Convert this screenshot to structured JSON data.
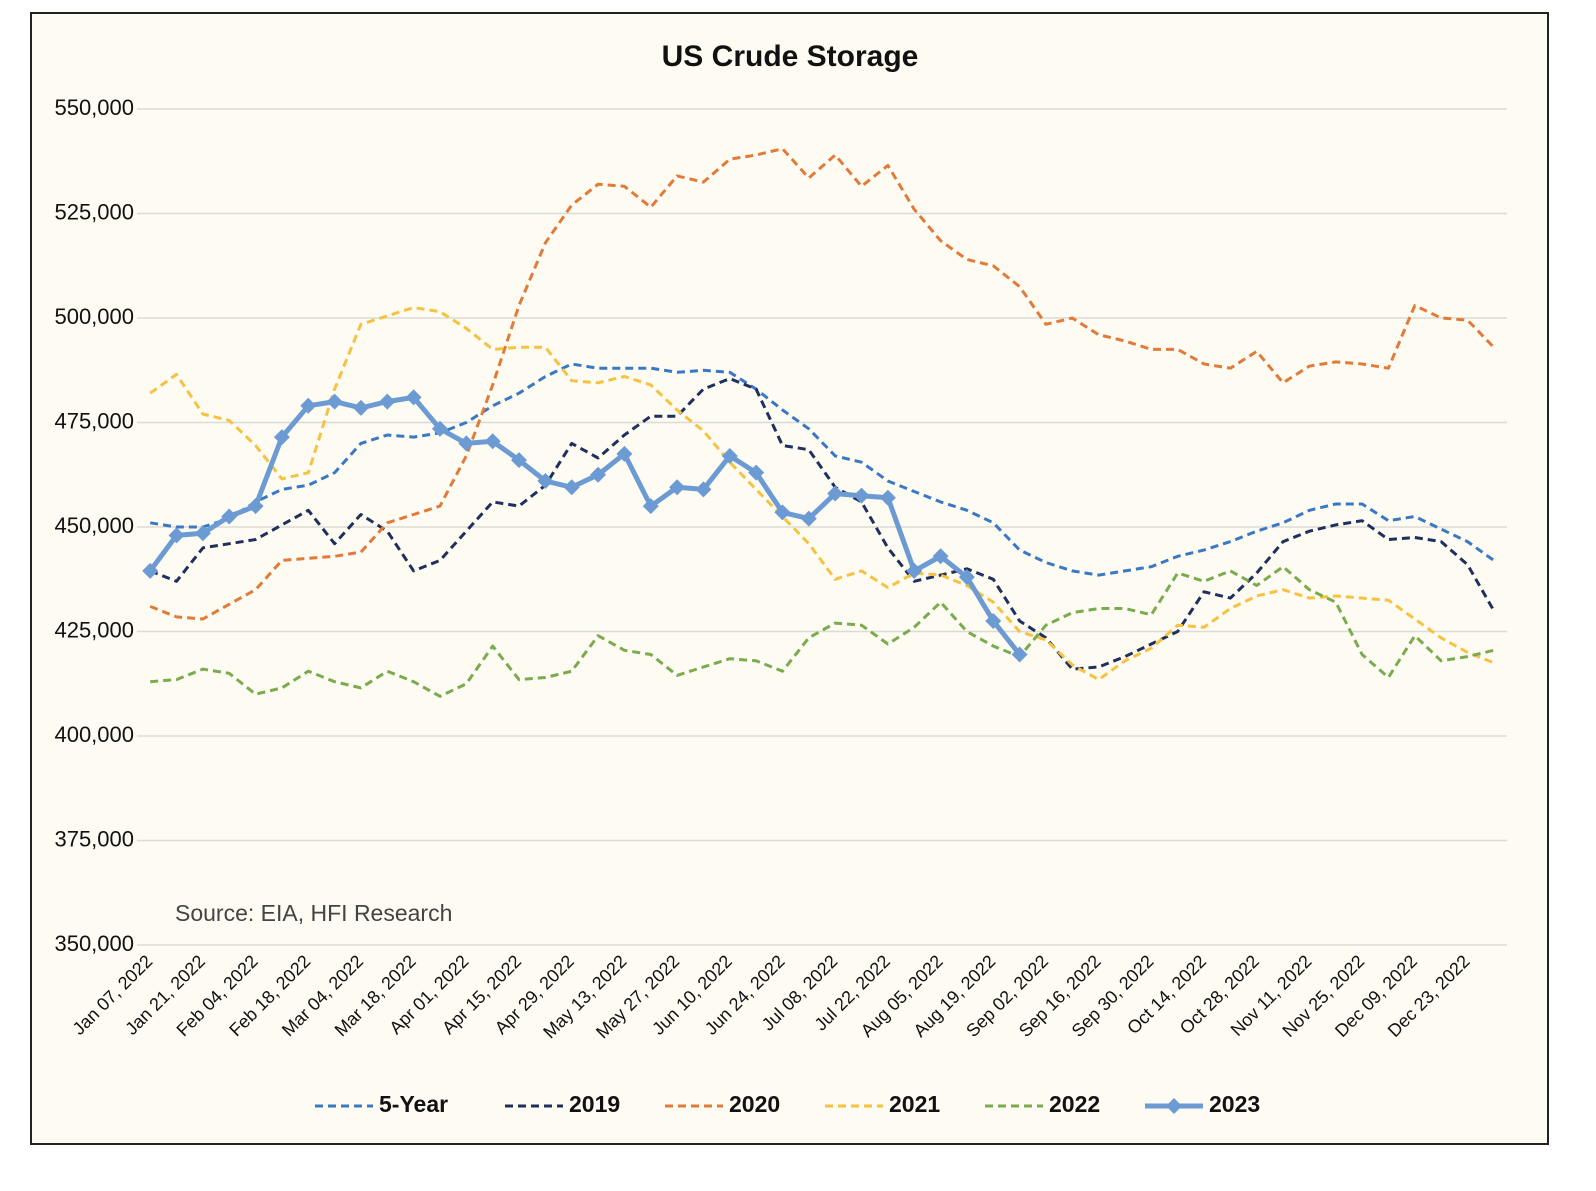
{
  "chart_data": {
    "type": "line",
    "title": "US Crude Storage",
    "annotation": "Source: EIA, HFI Research",
    "categories": [
      "Jan 07, 2022",
      null,
      "Jan 21, 2022",
      null,
      "Feb 04, 2022",
      null,
      "Feb 18, 2022",
      null,
      "Mar 04, 2022",
      null,
      "Mar 18, 2022",
      null,
      "Apr 01, 2022",
      null,
      "Apr 15, 2022",
      null,
      "Apr 29, 2022",
      null,
      "May 13, 2022",
      null,
      "May 27, 2022",
      null,
      "Jun 10, 2022",
      null,
      "Jun 24, 2022",
      null,
      "Jul 08, 2022",
      null,
      "Jul 22, 2022",
      null,
      "Aug 05, 2022",
      null,
      "Aug 19, 2022",
      null,
      "Sep 02, 2022",
      null,
      "Sep 16, 2022",
      null,
      "Sep 30, 2022",
      null,
      "Oct 14, 2022",
      null,
      "Oct 28, 2022",
      null,
      "Nov 11, 2022",
      null,
      "Nov 25, 2022",
      null,
      "Dec 09, 2022",
      null,
      "Dec 23, 2022",
      null
    ],
    "ylim": [
      350000,
      550000
    ],
    "yticks": [
      {
        "value": 350000,
        "label": "350,000"
      },
      {
        "value": 375000,
        "label": "375,000"
      },
      {
        "value": 400000,
        "label": "400,000"
      },
      {
        "value": 425000,
        "label": "425,000"
      },
      {
        "value": 450000,
        "label": "450,000"
      },
      {
        "value": 475000,
        "label": "475,000"
      },
      {
        "value": 500000,
        "label": "500,000"
      },
      {
        "value": 525000,
        "label": "525,000"
      },
      {
        "value": 550000,
        "label": "550,000"
      }
    ],
    "grid": true,
    "series": [
      {
        "name": "5-Year",
        "color": "#3a78c4",
        "dashed": true,
        "values": [
          451000,
          450000,
          450000,
          452000,
          456000,
          459000,
          460000,
          463000,
          470000,
          472000,
          471500,
          472500,
          475000,
          479000,
          482000,
          486000,
          489000,
          488000,
          488000,
          488000,
          487000,
          487500,
          487000,
          483000,
          478000,
          473500,
          467000,
          465500,
          461000,
          458500,
          456000,
          454000,
          451000,
          444500,
          441500,
          439500,
          438500,
          439500,
          440500,
          443000,
          444500,
          446500,
          449000,
          451000,
          454000,
          455500,
          455500,
          451500,
          452500,
          449500,
          446500,
          442000
        ]
      },
      {
        "name": "2019",
        "color": "#1f2f5e",
        "dashed": true,
        "values": [
          439500,
          437000,
          445000,
          446000,
          447000,
          450500,
          454000,
          446000,
          453000,
          449000,
          439500,
          442000,
          449000,
          456000,
          455000,
          460000,
          470000,
          466500,
          472000,
          476500,
          476500,
          483000,
          485500,
          483000,
          469500,
          468500,
          459500,
          456000,
          445000,
          437000,
          438500,
          440000,
          437500,
          427500,
          423500,
          416000,
          416500,
          419000,
          422000,
          425000,
          434500,
          433000,
          439000,
          446500,
          449000,
          450500,
          451500,
          447000,
          447500,
          446500,
          441000,
          430000
        ]
      },
      {
        "name": "2020",
        "color": "#e07b39",
        "dashed": true,
        "values": [
          431000,
          428500,
          428000,
          431500,
          435000,
          442000,
          442500,
          443000,
          444000,
          451000,
          453000,
          455000,
          467000,
          484000,
          503000,
          518000,
          527000,
          532000,
          531500,
          526500,
          534000,
          532500,
          538000,
          539000,
          540500,
          533500,
          539000,
          531500,
          536500,
          526000,
          518500,
          514000,
          512500,
          507500,
          498500,
          500000,
          496000,
          494500,
          492500,
          492500,
          489000,
          488000,
          492000,
          484500,
          488500,
          489500,
          489000,
          488000,
          503000,
          500000,
          499500,
          493000
        ]
      },
      {
        "name": "2021",
        "color": "#f5c242",
        "dashed": true,
        "values": [
          482000,
          486500,
          477000,
          475500,
          469500,
          461500,
          463000,
          483000,
          498500,
          500500,
          502500,
          501500,
          497500,
          492500,
          493000,
          493000,
          485000,
          484500,
          486000,
          484000,
          478000,
          473000,
          465500,
          459000,
          452500,
          446000,
          437500,
          439500,
          435500,
          439000,
          438500,
          436000,
          432000,
          425000,
          423000,
          417000,
          413500,
          418000,
          421000,
          426500,
          426000,
          430500,
          433500,
          435000,
          433000,
          433500,
          433000,
          432500,
          428000,
          423500,
          420000,
          417500
        ]
      },
      {
        "name": "2022",
        "color": "#7aab4e",
        "dashed": true,
        "values": [
          413000,
          413500,
          416000,
          415000,
          410000,
          411500,
          415500,
          413000,
          411500,
          415500,
          413000,
          409500,
          412500,
          421500,
          413500,
          414000,
          415500,
          424000,
          420500,
          419500,
          414500,
          416500,
          418500,
          418000,
          415500,
          423500,
          427000,
          426500,
          422000,
          426000,
          432000,
          425000,
          421500,
          419000,
          426500,
          429500,
          430500,
          430500,
          429000,
          439000,
          437000,
          439500,
          436000,
          440500,
          435000,
          432000,
          419500,
          414000,
          424000,
          418000,
          419000,
          420500
        ]
      },
      {
        "name": "2023",
        "color": "#6b9bd2",
        "dashed": false,
        "markers": true,
        "values": [
          439500,
          448000,
          448500,
          452500,
          455000,
          471500,
          479000,
          480000,
          478500,
          480000,
          481000,
          473500,
          470000,
          470500,
          466000,
          461000,
          459500,
          462500,
          467500,
          455000,
          459500,
          459000,
          467000,
          463000,
          453500,
          452000,
          458000,
          457500,
          457000,
          439500,
          443000,
          438000,
          427500,
          419500,
          null,
          null,
          null,
          null,
          null,
          null,
          null,
          null,
          null,
          null,
          null,
          null,
          null,
          null,
          null,
          null,
          null,
          null
        ]
      }
    ]
  }
}
